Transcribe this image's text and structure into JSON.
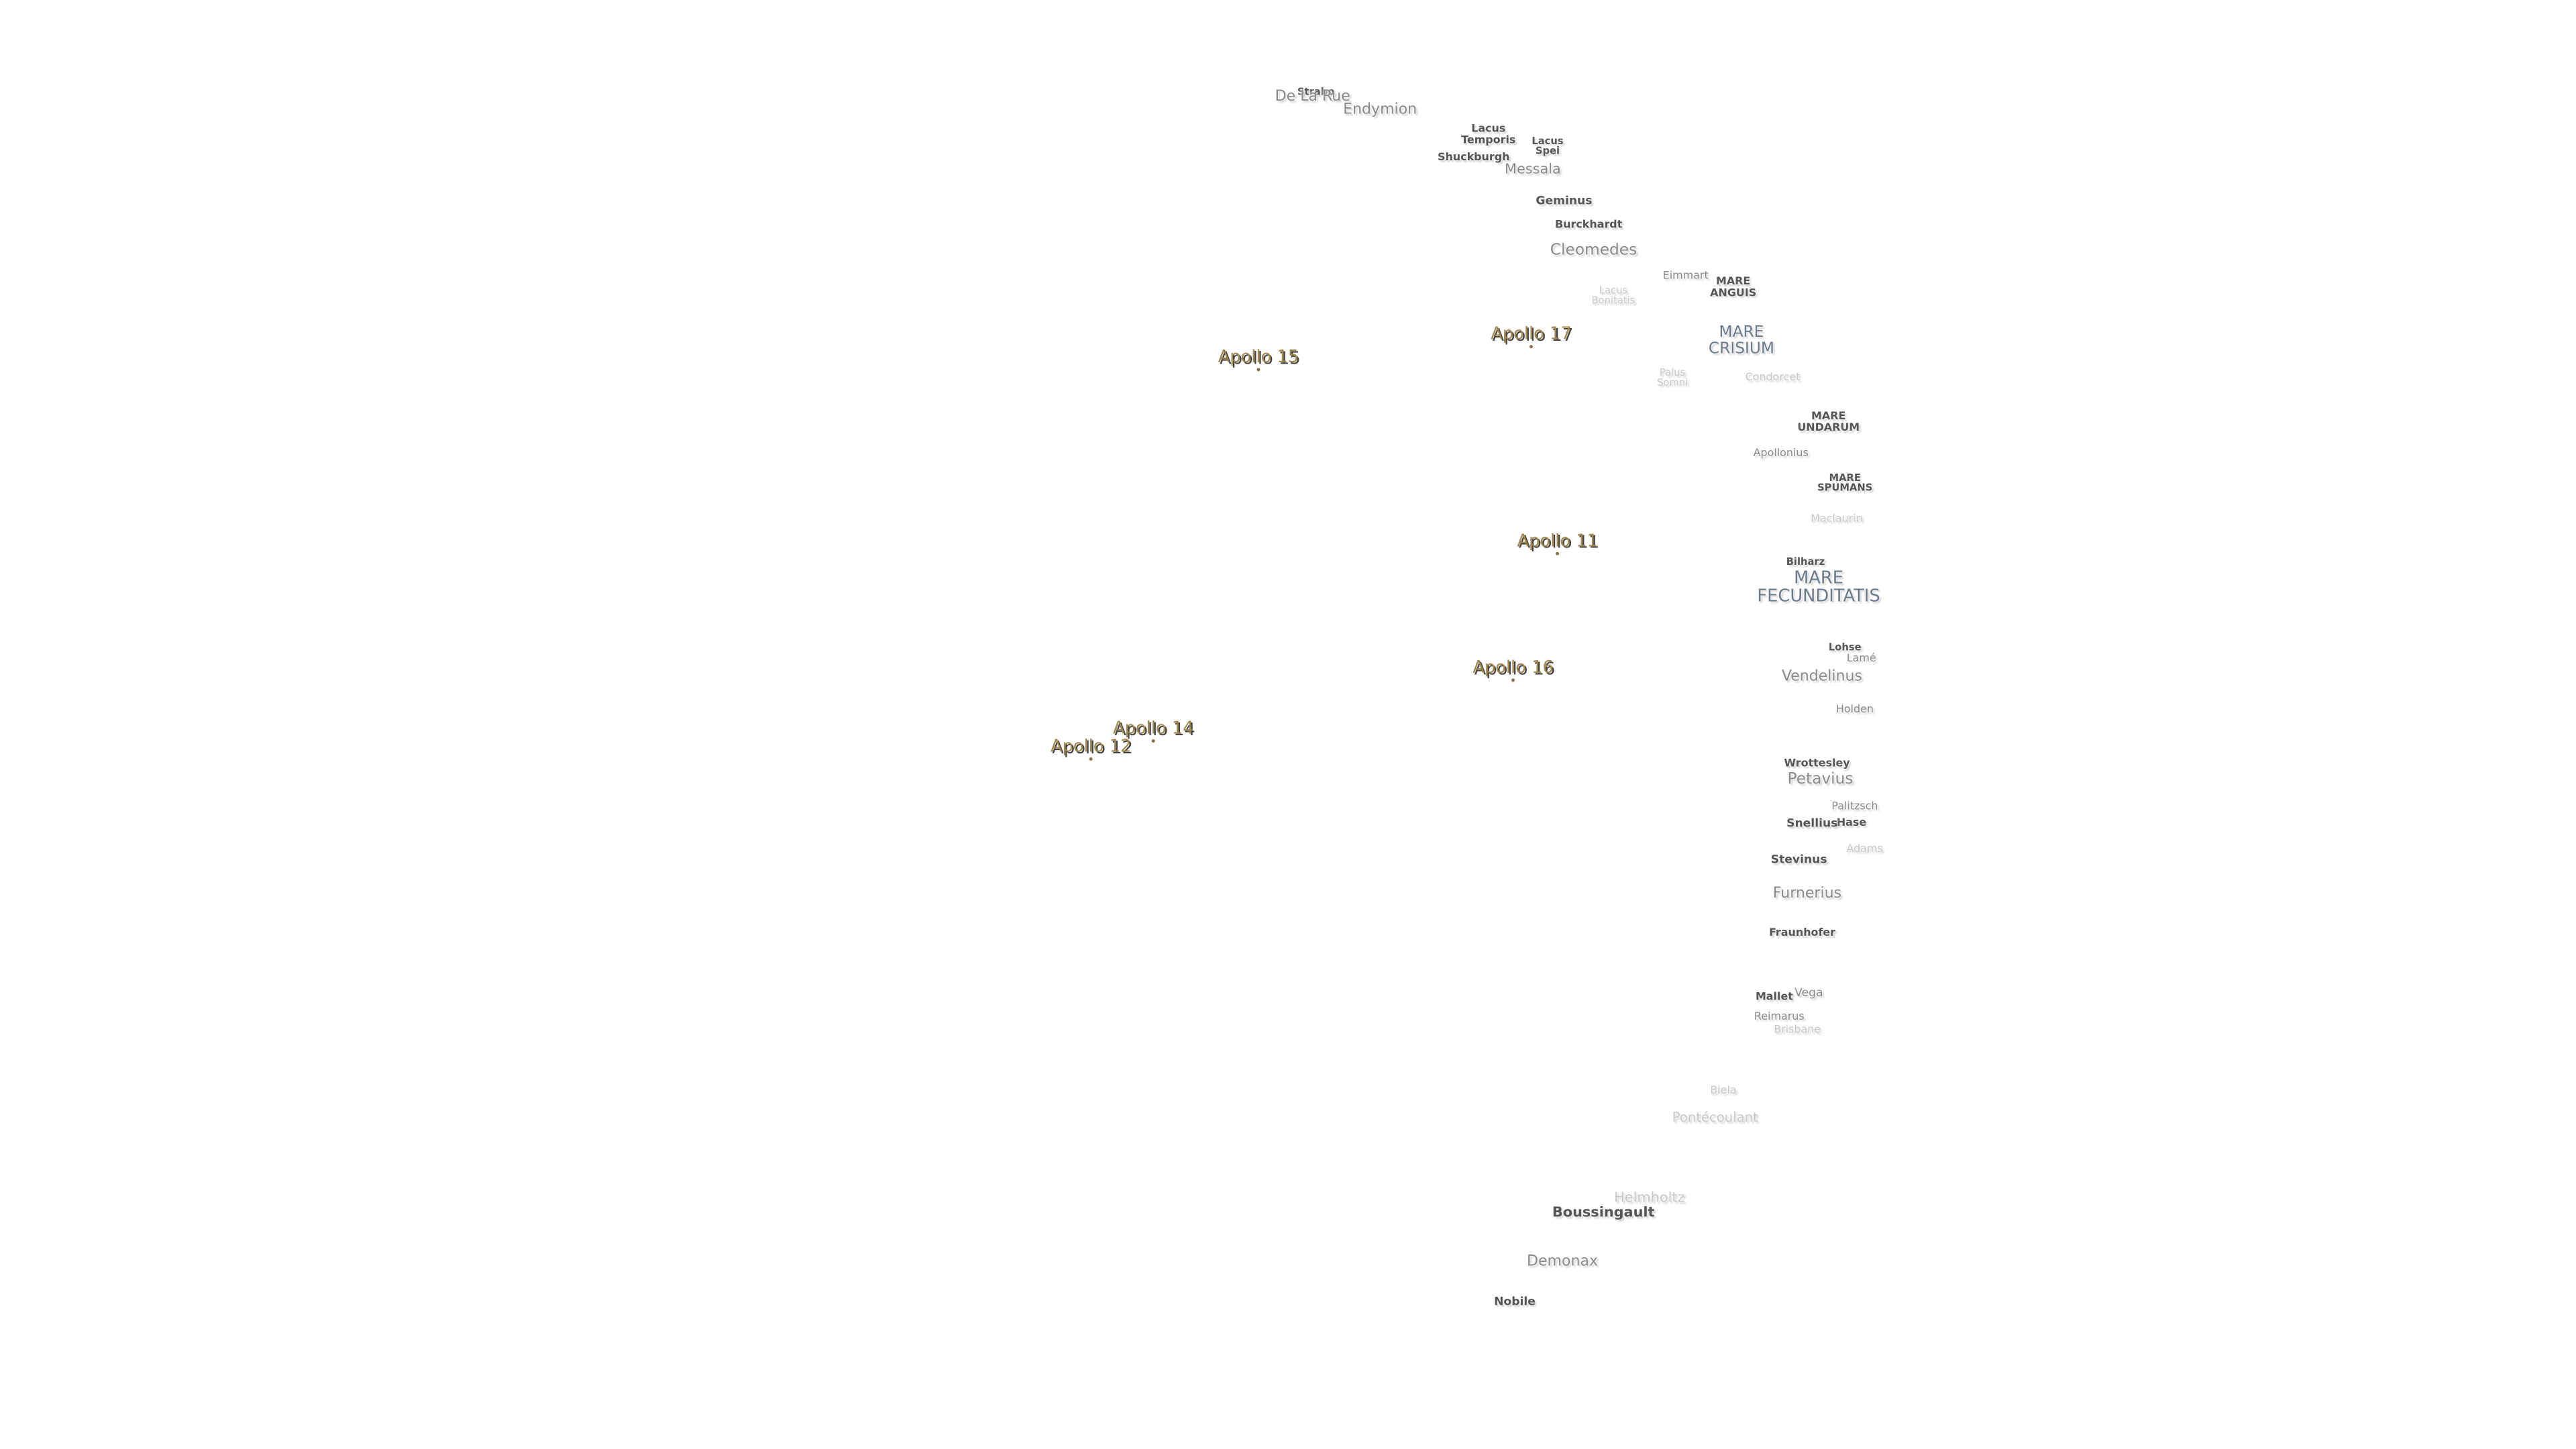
{
  "labels": [
    {
      "text": "Strabo"
    },
    {
      "text": "De La Rue"
    },
    {
      "text": "Endymion"
    },
    {
      "text": "Lacus\nTemporis"
    },
    {
      "text": "Lacus\nSpei"
    },
    {
      "text": "Shuckburgh"
    },
    {
      "text": "Messala"
    },
    {
      "text": "Geminus"
    },
    {
      "text": "Burckhardt"
    },
    {
      "text": "Cleomedes"
    },
    {
      "text": "Eimmart"
    },
    {
      "text": "MARE\nANGUIS"
    },
    {
      "text": "Lacus\nBonitatis"
    },
    {
      "text": "Apollo 17"
    },
    {
      "text": "Apollo 15"
    },
    {
      "text": "MARE\nCRISIUM"
    },
    {
      "text": "Palus\nSomni"
    },
    {
      "text": "Condorcet"
    },
    {
      "text": "MARE\nUNDARUM"
    },
    {
      "text": "Apollonius"
    },
    {
      "text": "MARE\nSPUMANS"
    },
    {
      "text": "Maclaurin"
    },
    {
      "text": "Apollo 11"
    },
    {
      "text": "Bilharz"
    },
    {
      "text": "MARE\nFECUNDITATIS"
    },
    {
      "text": "Lohse"
    },
    {
      "text": "Lamé"
    },
    {
      "text": "Apollo 16"
    },
    {
      "text": "Vendelinus"
    },
    {
      "text": "Holden"
    },
    {
      "text": "Apollo 14"
    },
    {
      "text": "Apollo 12"
    },
    {
      "text": "Wrottesley"
    },
    {
      "text": "Petavius"
    },
    {
      "text": "Palitzsch"
    },
    {
      "text": "Hase"
    },
    {
      "text": "Snellius"
    },
    {
      "text": "Adams"
    },
    {
      "text": "Stevinus"
    },
    {
      "text": "Furnerius"
    },
    {
      "text": "Fraunhofer"
    },
    {
      "text": "Vega"
    },
    {
      "text": "Mallet"
    },
    {
      "text": "Reimarus"
    },
    {
      "text": "Brisbane"
    },
    {
      "text": "Biela"
    },
    {
      "text": "Pontécoulant"
    },
    {
      "text": "Helmholtz"
    },
    {
      "text": "Boussingault"
    },
    {
      "text": "Demonax"
    },
    {
      "text": "Nobile"
    }
  ]
}
